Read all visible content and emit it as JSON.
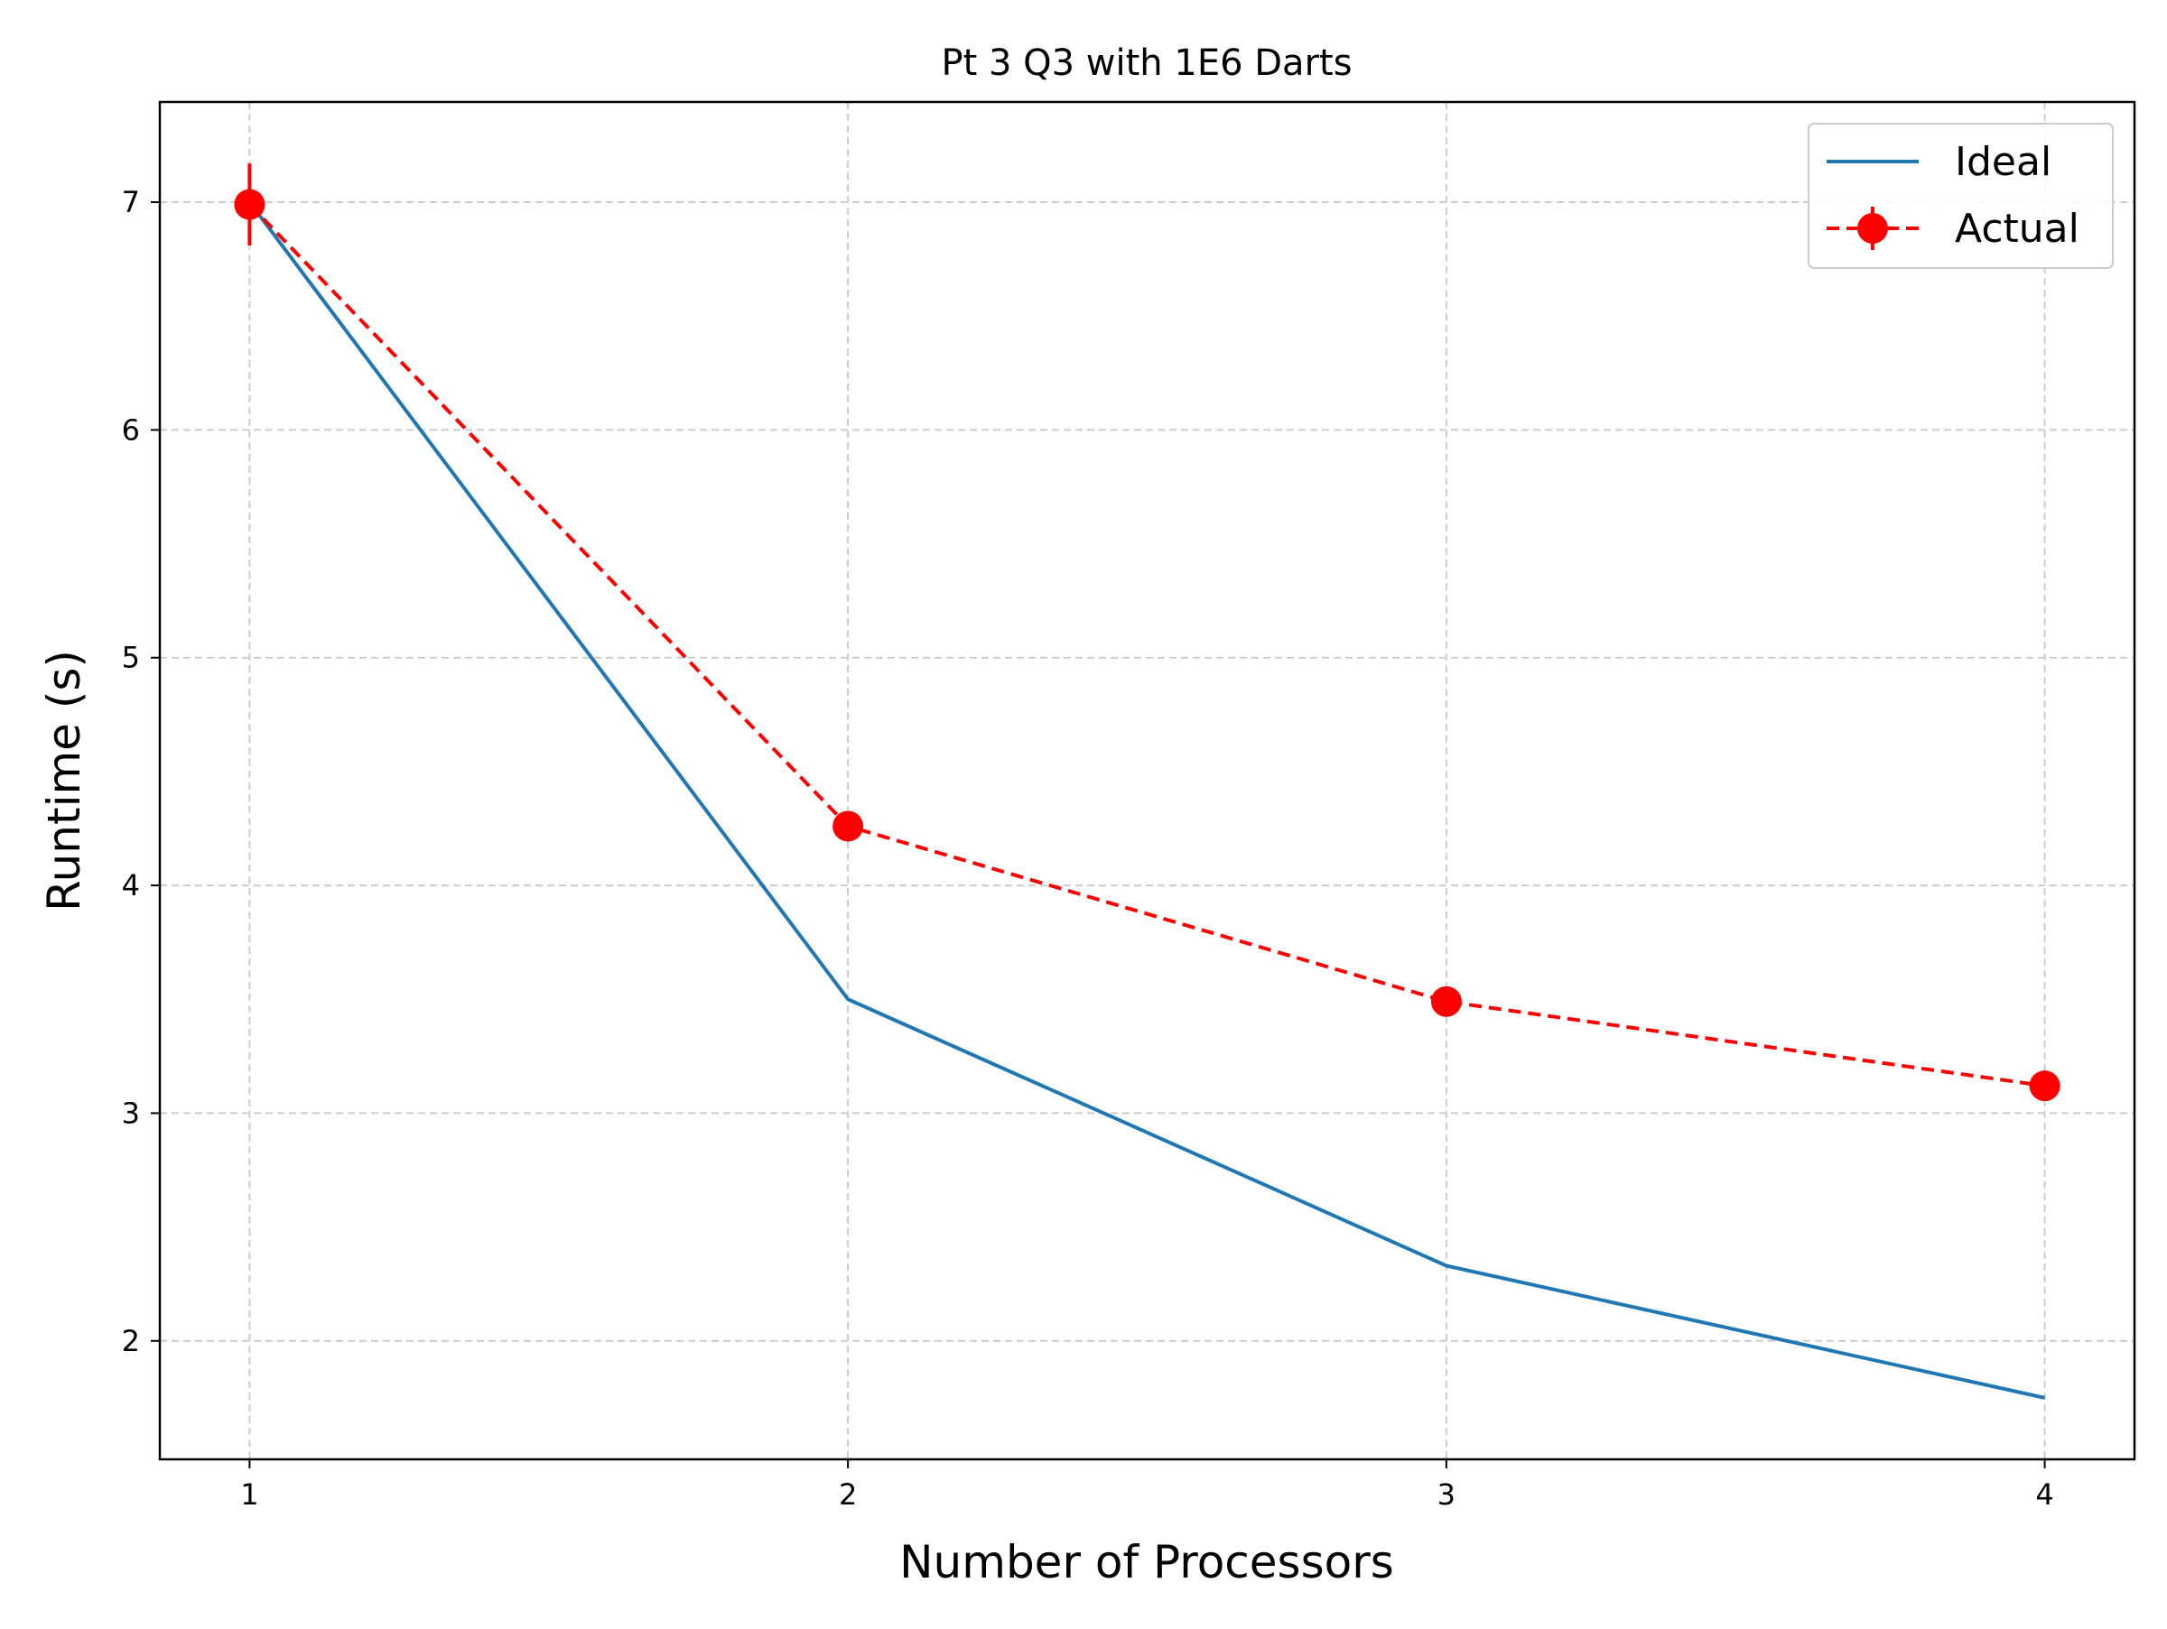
{
  "chart_data": {
    "type": "line",
    "title": "Pt 3 Q3 with 1E6 Darts",
    "xlabel": "Number of Processors",
    "ylabel": "Runtime (s)",
    "x": [
      1,
      2,
      3,
      4
    ],
    "xlim": [
      0.85,
      4.15
    ],
    "ylim": [
      1.48,
      7.44
    ],
    "xticks": [
      1,
      2,
      3,
      4
    ],
    "yticks": [
      2,
      3,
      4,
      5,
      6,
      7
    ],
    "grid": true,
    "legend_position": "top-right",
    "series": [
      {
        "name": "Ideal",
        "values": [
          7.0,
          3.5,
          2.33,
          1.75
        ],
        "color": "#1f77b4",
        "style": "solid",
        "marker": "none"
      },
      {
        "name": "Actual",
        "values": [
          6.99,
          4.26,
          3.49,
          3.12
        ],
        "yerr": [
          0.18,
          0.02,
          0.02,
          0.02
        ],
        "color": "#ff0000",
        "style": "dashed",
        "marker": "circle"
      }
    ]
  }
}
